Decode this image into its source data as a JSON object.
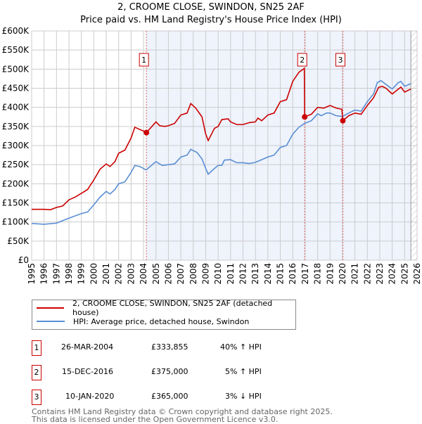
{
  "chart_data": {
    "type": "line",
    "title": "2, CROOME CLOSE, SWINDON, SN25 2AF",
    "subtitle": "Price paid vs. HM Land Registry's House Price Index (HPI)",
    "xlim": [
      1995,
      2026
    ],
    "ylim": [
      0,
      600000
    ],
    "x_ticks": [
      "1995",
      "1996",
      "1997",
      "1998",
      "1999",
      "2000",
      "2001",
      "2002",
      "2003",
      "2004",
      "2005",
      "2006",
      "2007",
      "2008",
      "2009",
      "2010",
      "2011",
      "2012",
      "2013",
      "2014",
      "2015",
      "2016",
      "2017",
      "2018",
      "2019",
      "2020",
      "2021",
      "2022",
      "2023",
      "2024",
      "2025",
      "2026"
    ],
    "y_ticks": [
      "£0",
      "£50K",
      "£100K",
      "£150K",
      "£200K",
      "£250K",
      "£300K",
      "£350K",
      "£400K",
      "£450K",
      "£500K",
      "£550K",
      "£600K"
    ],
    "grid": true,
    "shaded_ranges": [
      [
        2004.23,
        2025.5
      ]
    ],
    "hatched_from": 2025.5,
    "series": [
      {
        "name": "2, CROOME CLOSE, SWINDON, SN25 2AF (detached house)",
        "color": "#cc0000",
        "points": [
          [
            1995,
            133
          ],
          [
            1996,
            133
          ],
          [
            1996.5,
            132
          ],
          [
            1997,
            138
          ],
          [
            1997.5,
            142
          ],
          [
            1998,
            158
          ],
          [
            1998.5,
            165
          ],
          [
            1999,
            175
          ],
          [
            1999.5,
            185
          ],
          [
            2000,
            210
          ],
          [
            2000.5,
            238
          ],
          [
            2001,
            252
          ],
          [
            2001.3,
            245
          ],
          [
            2001.7,
            258
          ],
          [
            2002,
            280
          ],
          [
            2002.5,
            288
          ],
          [
            2003,
            320
          ],
          [
            2003.3,
            348
          ],
          [
            2003.7,
            342
          ],
          [
            2004,
            338
          ],
          [
            2004.23,
            333.855
          ],
          [
            2005,
            362
          ],
          [
            2005.3,
            352
          ],
          [
            2005.7,
            350
          ],
          [
            2006,
            352
          ],
          [
            2006.5,
            358
          ],
          [
            2007,
            380
          ],
          [
            2007.5,
            385
          ],
          [
            2007.8,
            410
          ],
          [
            2008.2,
            398
          ],
          [
            2008.7,
            375
          ],
          [
            2009,
            330
          ],
          [
            2009.2,
            313
          ],
          [
            2009.7,
            345
          ],
          [
            2010,
            350
          ],
          [
            2010.3,
            368
          ],
          [
            2010.8,
            370
          ],
          [
            2011,
            362
          ],
          [
            2011.5,
            355
          ],
          [
            2012,
            355
          ],
          [
            2012.5,
            360
          ],
          [
            2013,
            362
          ],
          [
            2013.2,
            372
          ],
          [
            2013.5,
            365
          ],
          [
            2014,
            380
          ],
          [
            2014.5,
            385
          ],
          [
            2015,
            415
          ],
          [
            2015.5,
            420
          ],
          [
            2016,
            468
          ],
          [
            2016.5,
            492
          ],
          [
            2016.93,
            502
          ],
          [
            2016.96,
            375
          ],
          [
            2017.5,
            382
          ],
          [
            2018,
            400
          ],
          [
            2018.5,
            398
          ],
          [
            2019,
            405
          ],
          [
            2019.5,
            398
          ],
          [
            2019.95,
            395
          ],
          [
            2020.03,
            365
          ],
          [
            2020.5,
            378
          ],
          [
            2021,
            385
          ],
          [
            2021.5,
            382
          ],
          [
            2022,
            405
          ],
          [
            2022.5,
            425
          ],
          [
            2022.9,
            452
          ],
          [
            2023.2,
            455
          ],
          [
            2023.5,
            450
          ],
          [
            2024,
            435
          ],
          [
            2024.5,
            448
          ],
          [
            2024.7,
            453
          ],
          [
            2025,
            440
          ],
          [
            2025.5,
            448
          ]
        ]
      },
      {
        "name": "HPI: Average price, detached house, Swindon",
        "color": "#5b8fd4",
        "points": [
          [
            1995,
            96
          ],
          [
            1996,
            94
          ],
          [
            1997,
            97
          ],
          [
            1998,
            110
          ],
          [
            1999,
            122
          ],
          [
            1999.5,
            126
          ],
          [
            2000,
            145
          ],
          [
            2000.5,
            165
          ],
          [
            2001,
            180
          ],
          [
            2001.3,
            173
          ],
          [
            2001.7,
            185
          ],
          [
            2002,
            200
          ],
          [
            2002.5,
            205
          ],
          [
            2003,
            230
          ],
          [
            2003.3,
            248
          ],
          [
            2003.7,
            245
          ],
          [
            2004,
            240
          ],
          [
            2004.2,
            236
          ],
          [
            2005,
            258
          ],
          [
            2005.5,
            248
          ],
          [
            2006,
            250
          ],
          [
            2006.5,
            252
          ],
          [
            2007,
            270
          ],
          [
            2007.5,
            275
          ],
          [
            2007.8,
            290
          ],
          [
            2008.3,
            282
          ],
          [
            2008.7,
            265
          ],
          [
            2009,
            240
          ],
          [
            2009.2,
            225
          ],
          [
            2009.7,
            240
          ],
          [
            2010,
            248
          ],
          [
            2010.3,
            248
          ],
          [
            2010.5,
            262
          ],
          [
            2011,
            263
          ],
          [
            2011.5,
            255
          ],
          [
            2012,
            255
          ],
          [
            2012.5,
            253
          ],
          [
            2013,
            256
          ],
          [
            2013.5,
            263
          ],
          [
            2014,
            270
          ],
          [
            2014.5,
            275
          ],
          [
            2015,
            295
          ],
          [
            2015.5,
            300
          ],
          [
            2016,
            330
          ],
          [
            2016.5,
            348
          ],
          [
            2016.95,
            358
          ],
          [
            2017.5,
            365
          ],
          [
            2018,
            383
          ],
          [
            2018.3,
            378
          ],
          [
            2018.7,
            385
          ],
          [
            2019,
            385
          ],
          [
            2019.5,
            378
          ],
          [
            2020,
            376
          ],
          [
            2020.5,
            385
          ],
          [
            2021,
            393
          ],
          [
            2021.5,
            390
          ],
          [
            2022,
            415
          ],
          [
            2022.5,
            435
          ],
          [
            2022.8,
            465
          ],
          [
            2023.1,
            470
          ],
          [
            2023.5,
            460
          ],
          [
            2024,
            448
          ],
          [
            2024.5,
            465
          ],
          [
            2024.7,
            468
          ],
          [
            2025,
            455
          ],
          [
            2025.5,
            462
          ]
        ]
      }
    ],
    "y_units_of_points": "thousands GBP",
    "sales": [
      {
        "label": "1",
        "x": 2004.23,
        "y": 333.855
      },
      {
        "label": "2",
        "x": 2016.96,
        "y": 375
      },
      {
        "label": "3",
        "x": 2020.03,
        "y": 365
      }
    ]
  },
  "legend": {
    "red": "2, CROOME CLOSE, SWINDON, SN25 2AF (detached house)",
    "blue": "HPI: Average price, detached house, Swindon"
  },
  "table": [
    {
      "num": "1",
      "date": "26-MAR-2004",
      "price": "£333,855",
      "hpi": "40% ↑ HPI"
    },
    {
      "num": "2",
      "date": "15-DEC-2016",
      "price": "£375,000",
      "hpi": "5% ↑ HPI"
    },
    {
      "num": "3",
      "date": "10-JAN-2020",
      "price": "£365,000",
      "hpi": "3% ↓ HPI"
    }
  ],
  "footer": {
    "line1": "Contains HM Land Registry data © Crown copyright and database right 2025.",
    "line2": "This data is licensed under the Open Government Licence v3.0."
  }
}
